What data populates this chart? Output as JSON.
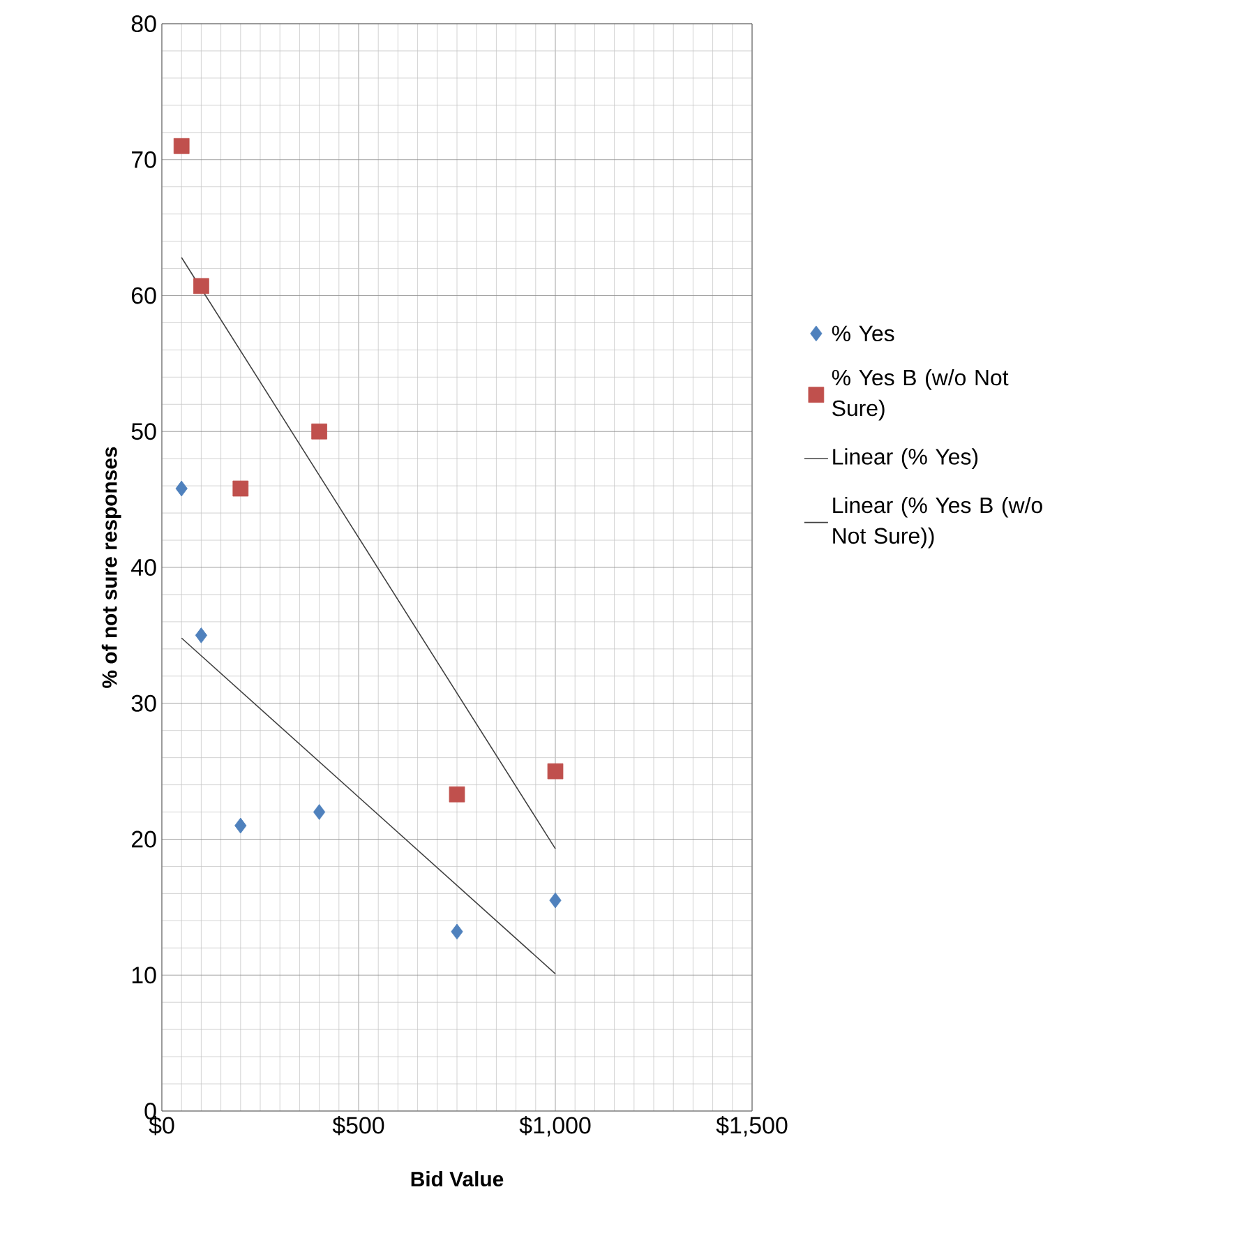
{
  "chart_data": {
    "type": "scatter",
    "xlabel": "Bid Value",
    "ylabel": "% of not sure responses",
    "xlim": [
      0,
      1500
    ],
    "ylim": [
      0,
      80
    ],
    "xticks": [
      {
        "value": 0,
        "label": "$0"
      },
      {
        "value": 500,
        "label": "$500"
      },
      {
        "value": 1000,
        "label": "$1,000"
      },
      {
        "value": 1500,
        "label": "$1,500"
      }
    ],
    "yticks": [
      0,
      10,
      20,
      30,
      40,
      50,
      60,
      70,
      80
    ],
    "grid": true,
    "legend": "right",
    "series": [
      {
        "name": "% Yes",
        "marker": "diamond",
        "color": "#4f81bd",
        "x": [
          50,
          100,
          200,
          400,
          750,
          1000
        ],
        "values": [
          45.8,
          35,
          21,
          22,
          13.2,
          15.5
        ]
      },
      {
        "name": "% Yes B (w/o Not Sure)",
        "marker": "square",
        "color": "#c0504d",
        "x": [
          50,
          100,
          200,
          400,
          750,
          1000
        ],
        "values": [
          71,
          60.7,
          45.8,
          50,
          23.3,
          25
        ]
      },
      {
        "name": "Linear (% Yes)",
        "type": "line",
        "marker": "none",
        "color": "#404040",
        "x": [
          50,
          1000
        ],
        "values": [
          34.8,
          10.1
        ]
      },
      {
        "name": "Linear (% Yes B (w/o Not Sure))",
        "type": "line",
        "marker": "none",
        "color": "#404040",
        "x": [
          50,
          1000
        ],
        "values": [
          62.8,
          19.3
        ]
      }
    ]
  }
}
